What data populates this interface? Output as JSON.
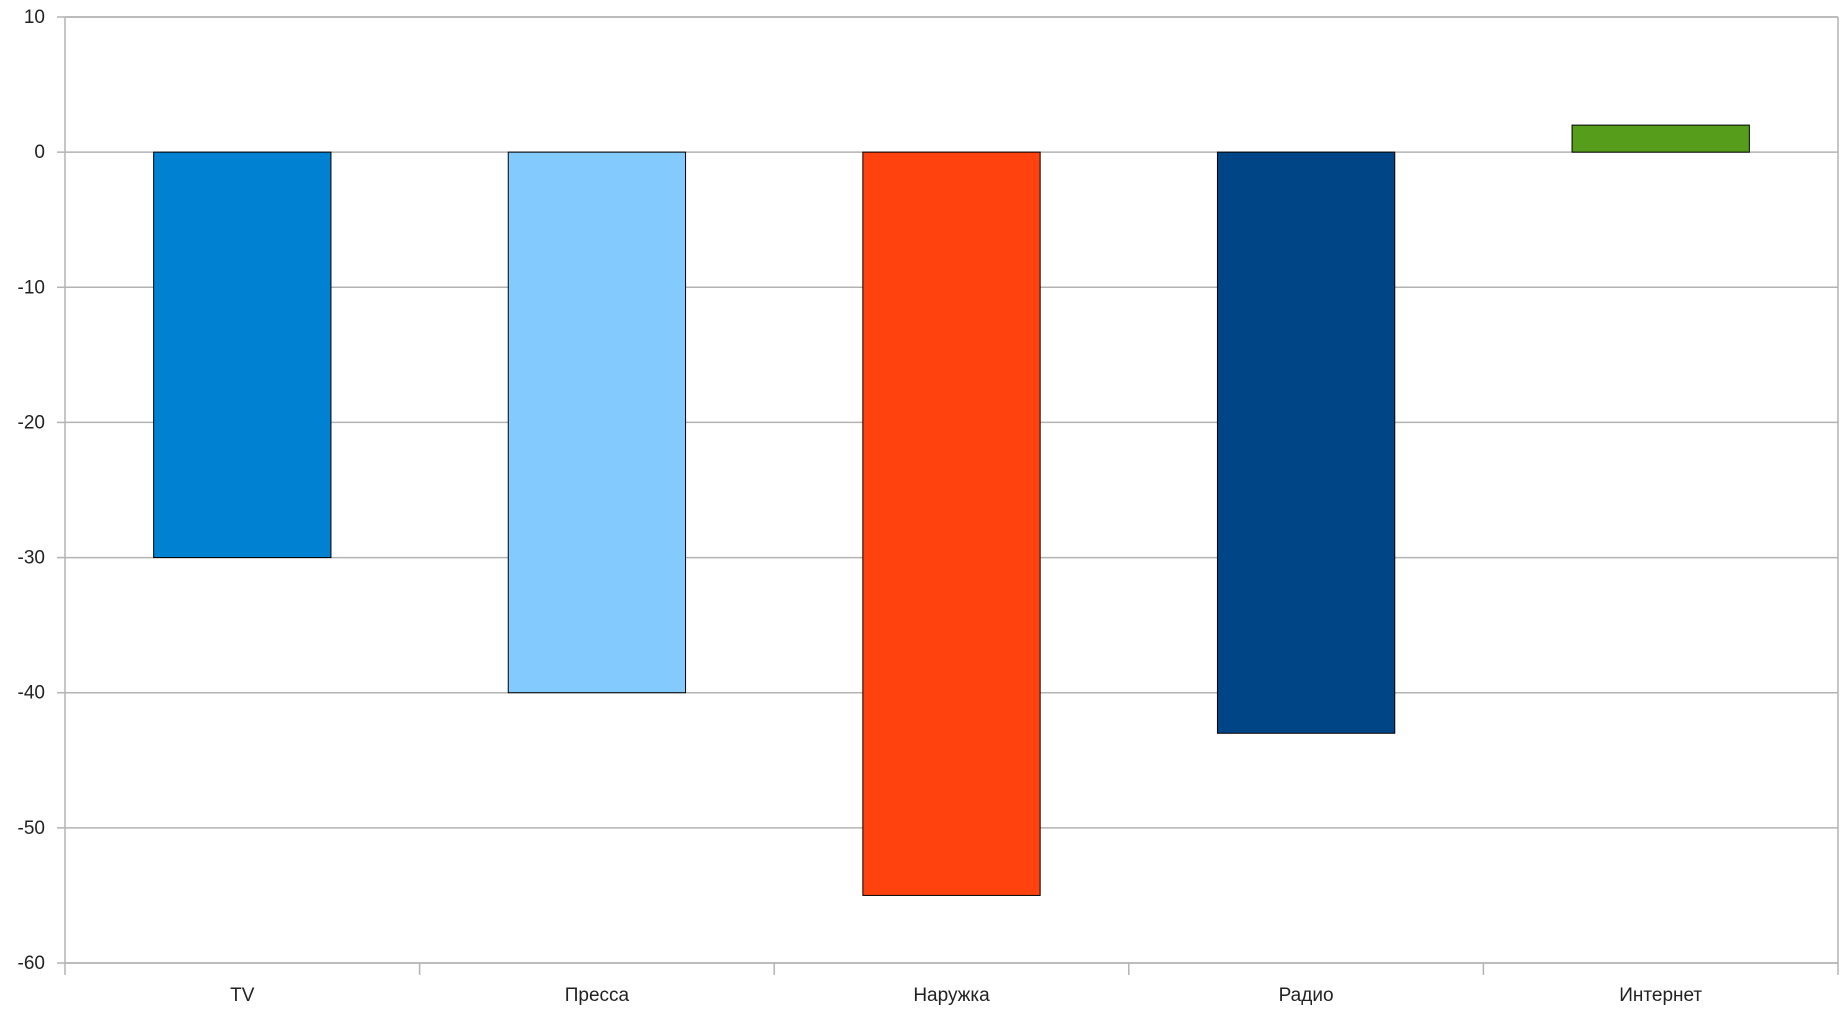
{
  "chart_data": {
    "type": "bar",
    "title": "",
    "xlabel": "",
    "ylabel": "",
    "categories": [
      "TV",
      "Пресса",
      "Наружка",
      "Радио",
      "Интернет"
    ],
    "values": [
      -30,
      -40,
      -55,
      -43,
      2
    ],
    "colors": [
      "#0081d1",
      "#83caff",
      "#ff420e",
      "#004586",
      "#579d1c"
    ],
    "ylim": [
      -60,
      10
    ],
    "yticks": [
      10,
      0,
      -10,
      -20,
      -30,
      -40,
      -50,
      -60
    ],
    "grid": true,
    "legend": "none"
  }
}
